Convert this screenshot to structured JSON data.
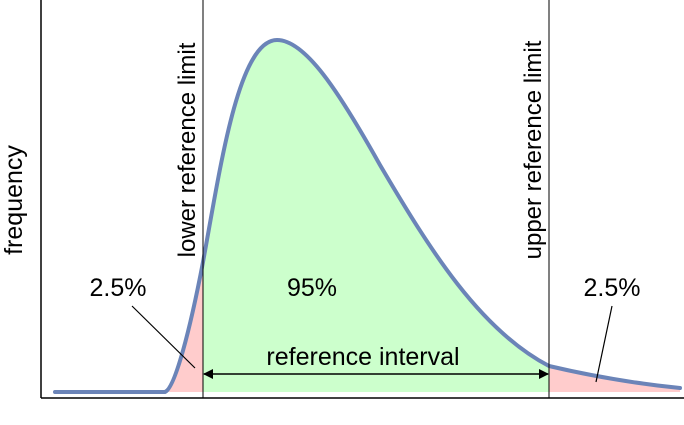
{
  "axis": {
    "y_label": "frequency"
  },
  "limits": {
    "lower_label": "lower reference limit",
    "upper_label": "upper reference limit"
  },
  "regions": {
    "left_tail_percent": "2.5%",
    "center_percent": "95%",
    "right_tail_percent": "2.5%",
    "interval_label": "reference interval"
  },
  "colors": {
    "curve": "#6b84b8",
    "center_fill": "#ccffcc",
    "tail_fill": "#ffcccc",
    "lines": "#000000"
  }
}
